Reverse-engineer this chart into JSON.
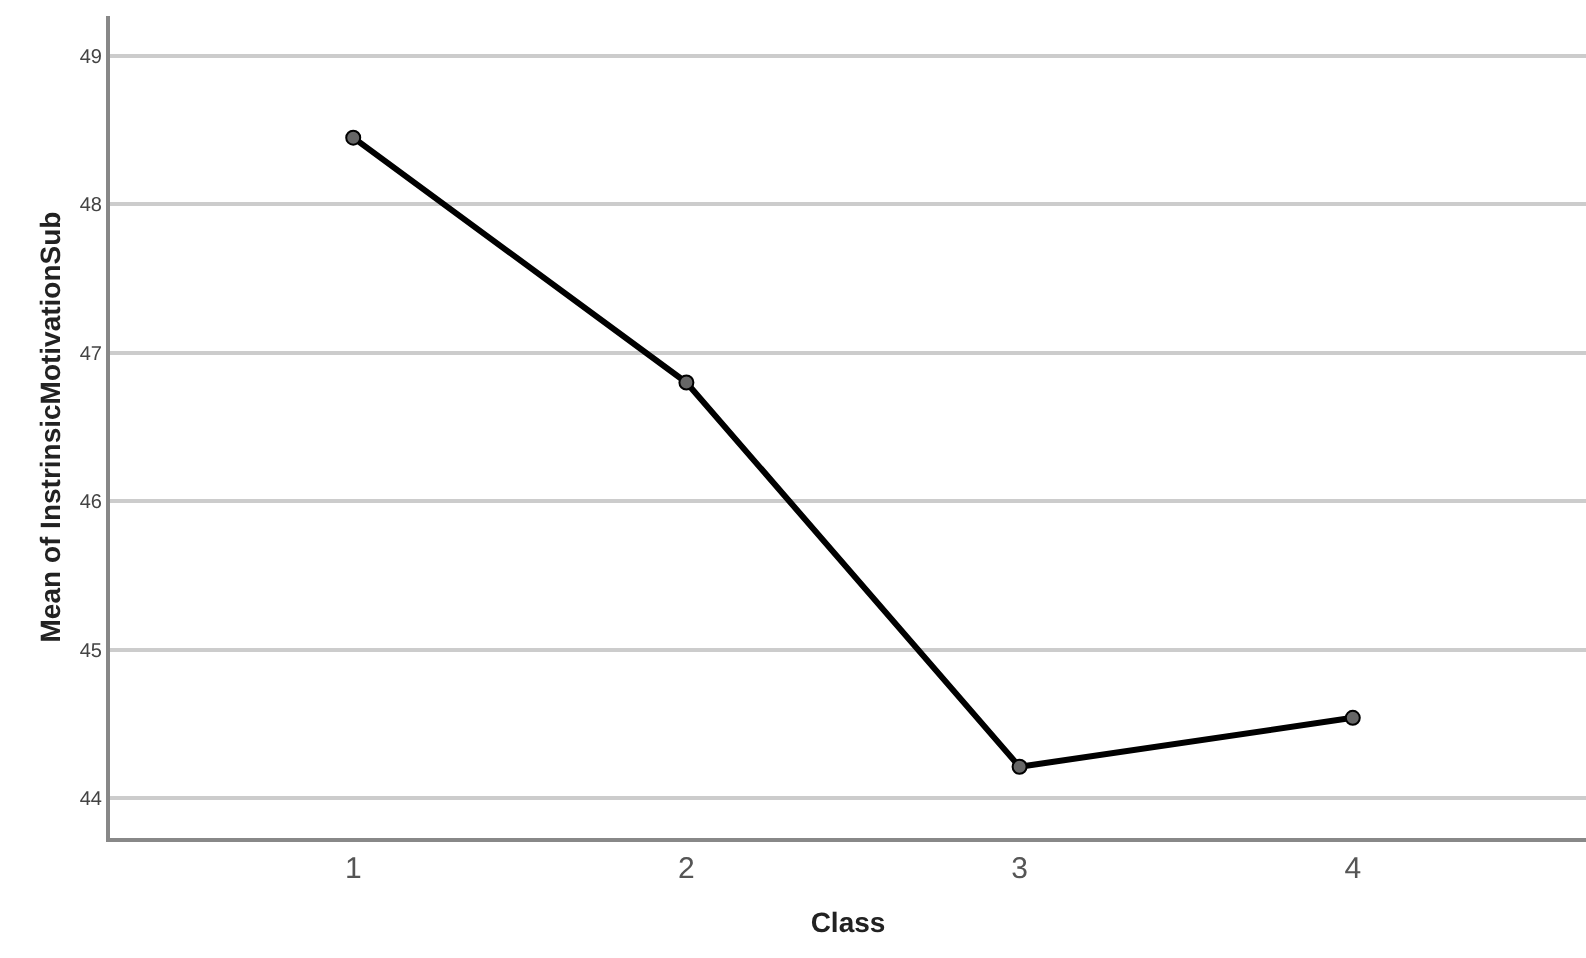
{
  "chart_data": {
    "type": "line",
    "xlabel": "Class",
    "ylabel": "Mean of InstrinsicMotivationSub",
    "categories": [
      "1",
      "2",
      "3",
      "4"
    ],
    "series": [
      {
        "color": "#000000",
        "values": [
          48.45,
          46.8,
          44.21,
          44.54
        ]
      }
    ],
    "ylim": [
      43.73,
      49.27
    ],
    "yticks": [
      44,
      45,
      46,
      47,
      48,
      49
    ],
    "grid": "y",
    "marker": "circle",
    "line_style": "solid"
  }
}
